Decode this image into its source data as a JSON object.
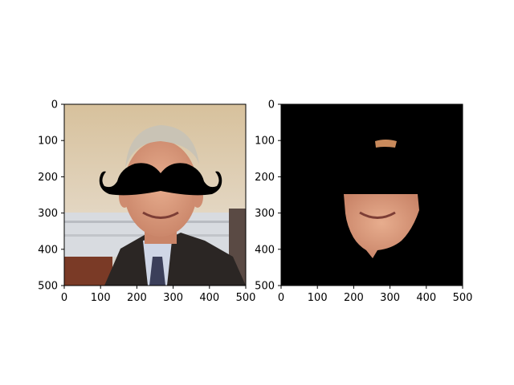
{
  "figure": {
    "panels": [
      {
        "name": "left-image-panel",
        "content": "photo of man with overlaid mustache",
        "x_ticks": [
          "0",
          "100",
          "200",
          "300",
          "400",
          "500"
        ],
        "y_ticks": [
          "0",
          "100",
          "200",
          "300",
          "400",
          "500"
        ]
      },
      {
        "name": "right-image-panel",
        "content": "face segmentation mask on black background",
        "x_ticks": [
          "0",
          "100",
          "200",
          "300",
          "400",
          "500"
        ],
        "y_ticks": [
          "0",
          "100",
          "200",
          "300",
          "400",
          "500"
        ]
      }
    ],
    "colors": {
      "background_wall": "#d9c6a4",
      "skin": "#d89a7a",
      "suit": "#2b2624",
      "shirt": "#cfd6e6",
      "mustache": "#000000",
      "mask_background": "#000000"
    }
  }
}
